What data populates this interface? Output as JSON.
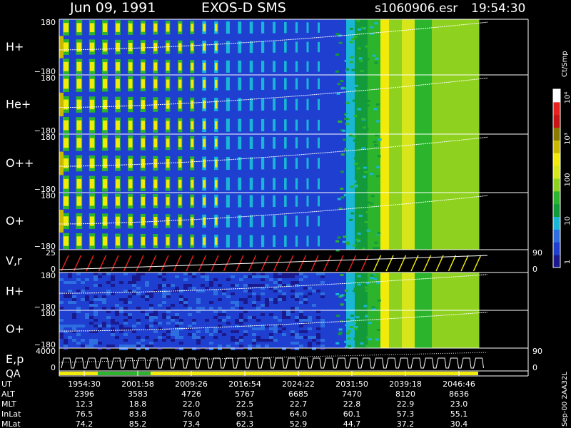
{
  "header": {
    "date": "Jun 09, 1991",
    "instrument": "EXOS-D SMS",
    "file": "s1060906.esr",
    "time": "19:54:30"
  },
  "colorbar": {
    "unit": "Ct/Smp",
    "ticks": [
      "1",
      "10",
      "100",
      "10³",
      "10⁴"
    ]
  },
  "chart_data": {
    "type": "heatmap",
    "panels": [
      {
        "label": "H+",
        "ymax": "180",
        "ymin": "−180"
      },
      {
        "label": "He+",
        "ymax": "180",
        "ymin": "−180"
      },
      {
        "label": "O++",
        "ymax": "180",
        "ymin": "−180"
      },
      {
        "label": "O+",
        "ymax": "180",
        "ymin": "−180"
      },
      {
        "label": "V,r",
        "ymax": "25",
        "ymin": "0",
        "rmax": "90",
        "rmin": "0"
      },
      {
        "label": "H+",
        "ymax": "180",
        "ymin": "−180"
      },
      {
        "label": "O+",
        "ymax": "180",
        "ymin": "−180"
      },
      {
        "label": "E,p",
        "ymax": "4000",
        "ymin": "0",
        "rmax": "90",
        "rmin": "0"
      },
      {
        "label": "QA"
      }
    ],
    "ephemeris": {
      "rows": [
        "UT",
        "ALT",
        "MLT",
        "InLat",
        "MLat"
      ],
      "columns": [
        [
          "1954:30",
          "2396",
          "12.3",
          "76.5",
          "74.2"
        ],
        [
          "2001:58",
          "3583",
          "18.8",
          "83.8",
          "85.2"
        ],
        [
          "2009:26",
          "4726",
          "22.0",
          "76.0",
          "73.4"
        ],
        [
          "2016:54",
          "5767",
          "22.5",
          "69.1",
          "62.3"
        ],
        [
          "2024:22",
          "6685",
          "22.7",
          "64.0",
          "52.9"
        ],
        [
          "2031:50",
          "7470",
          "22.8",
          "60.1",
          "44.7"
        ],
        [
          "2039:18",
          "8120",
          "22.9",
          "57.3",
          "37.2"
        ],
        [
          "2046:46",
          "8636",
          "23.0",
          "55.1",
          "30.4"
        ]
      ]
    }
  },
  "footer": {
    "version": "Sep-00 2AA32L"
  },
  "colors": {
    "scale": [
      "#1a1a8e",
      "#1f3fd0",
      "#2d6fe0",
      "#19b6d6",
      "#139a3a",
      "#2cb52c",
      "#8fd11f",
      "#d6e61a",
      "#f2ea0a",
      "#c9b800",
      "#8a7a00",
      "#c81414",
      "#e82020",
      "#ffffff"
    ]
  }
}
